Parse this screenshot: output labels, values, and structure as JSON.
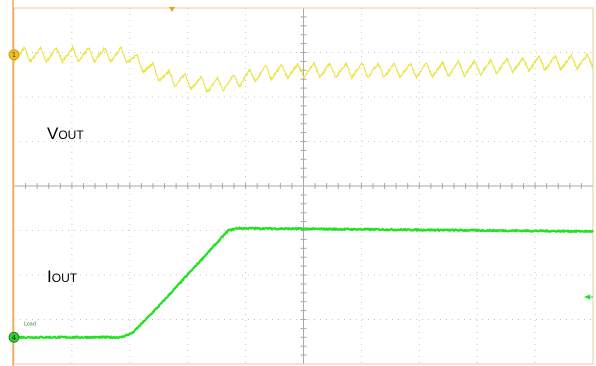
{
  "chart_data": {
    "type": "line",
    "title": "",
    "xlabel": "",
    "ylabel": "",
    "x_divisions": 10,
    "y_divisions": 8,
    "grid": true,
    "legend": "none",
    "series": [
      {
        "label_main": "V",
        "label_sub": "OUT",
        "channel": "1",
        "color": "#e6e020",
        "ripple_amplitude_div": 0.32,
        "ripple_cycles_per_div": 3.6,
        "x": [
          0.0,
          1.0,
          1.9,
          2.6,
          3.4,
          3.8,
          4.3,
          5.0,
          6.0,
          7.0,
          8.0,
          9.0,
          10.0
        ],
        "y": [
          2.95,
          2.95,
          2.95,
          2.45,
          2.25,
          2.35,
          2.55,
          2.6,
          2.6,
          2.6,
          2.65,
          2.75,
          2.8
        ]
      },
      {
        "label_main": "I",
        "label_sub": "OUT",
        "channel": "4",
        "color": "#22e022",
        "marker_text": "Load",
        "x": [
          0.0,
          1.85,
          2.05,
          2.5,
          3.7,
          3.85,
          10.0
        ],
        "y": [
          -3.4,
          -3.4,
          -3.3,
          -2.7,
          -1.0,
          -0.95,
          -1.02
        ]
      }
    ]
  }
}
